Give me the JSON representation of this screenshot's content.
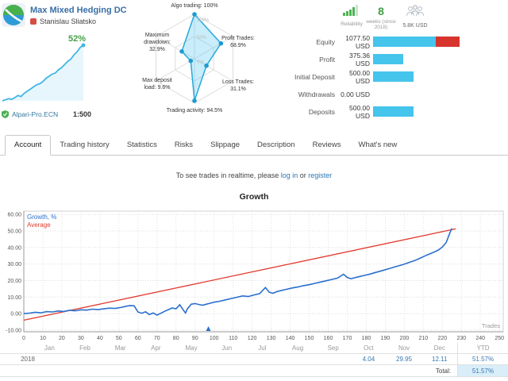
{
  "signal": {
    "title": "Max Mixed Hedging DC",
    "author": "Stanislau Sliatsko",
    "growth_badge": "52%",
    "broker": "Alpari-Pro.ECN",
    "leverage": "1:500"
  },
  "stats": {
    "reliability_label": "Reliability",
    "weeks_value": "8",
    "weeks_label": "weeks (since 2018)",
    "funds_label": "5.8K USD"
  },
  "account_summary": {
    "rows": [
      {
        "label": "Equity",
        "value": "1077.50 USD",
        "bar_blue": 79,
        "bar_red": 30
      },
      {
        "label": "Profit",
        "value": "375.36 USD",
        "bar_blue": 38,
        "bar_red": 0
      },
      {
        "label": "Initial Deposit",
        "value": "500.00 USD",
        "bar_blue": 51,
        "bar_red": 0
      },
      {
        "label": "Withdrawals",
        "value": "0.00 USD",
        "bar_blue": 0,
        "bar_red": 0
      },
      {
        "label": "Deposits",
        "value": "500.00 USD",
        "bar_blue": 51,
        "bar_red": 0
      }
    ]
  },
  "tabs": {
    "items": [
      "Account",
      "Trading history",
      "Statistics",
      "Risks",
      "Slippage",
      "Description",
      "Reviews",
      "What's new"
    ],
    "active": "Account"
  },
  "notice": {
    "text": "To see trades in realtime, please ",
    "login_link": "log in",
    "separator": " or ",
    "register_link": "register"
  },
  "chart_data": [
    {
      "id": "radar",
      "type": "radar",
      "max": 100,
      "ring_labels": [
        "100%",
        "50%",
        "0%"
      ],
      "axes": [
        {
          "lines": [
            "Algo trading: 100%"
          ],
          "value": 100
        },
        {
          "lines": [
            "Profit Trades:",
            "68.9%"
          ],
          "value": 68.9
        },
        {
          "lines": [
            "Loss Trades:",
            "31.1%"
          ],
          "value": 31.1
        },
        {
          "lines": [
            "Trading activity: 94.5%"
          ],
          "value": 94.5
        },
        {
          "lines": [
            "Max deposit",
            "load: 9.6%"
          ],
          "value": 9.6
        },
        {
          "lines": [
            "Maximum",
            "drawdown:",
            "32.9%"
          ],
          "value": 32.9
        }
      ]
    },
    {
      "id": "sparkline",
      "type": "area",
      "label": "52%",
      "ylim": [
        0,
        52
      ],
      "values": [
        0,
        1,
        2,
        1.5,
        3,
        5,
        4,
        7,
        9,
        11,
        13,
        15,
        16,
        18,
        21,
        23,
        25,
        26,
        29,
        31,
        34,
        37,
        39,
        43,
        46,
        50,
        52
      ]
    },
    {
      "id": "growth",
      "type": "line",
      "title": "Growth",
      "xlabel": "Trades",
      "xlim": [
        0,
        252
      ],
      "ylim": [
        -11,
        62
      ],
      "x_ticks": [
        0,
        10,
        20,
        30,
        40,
        50,
        60,
        70,
        80,
        90,
        100,
        110,
        120,
        130,
        140,
        150,
        160,
        170,
        180,
        190,
        200,
        210,
        220,
        230,
        240,
        250
      ],
      "y_ticks": [
        60,
        50,
        40,
        30,
        20,
        10,
        0,
        -10
      ],
      "marker_x": 97,
      "series": [
        {
          "name": "Growth, %",
          "color": "#2a6fce",
          "points": [
            [
              0,
              0
            ],
            [
              3,
              0.3
            ],
            [
              6,
              0.8
            ],
            [
              9,
              0.5
            ],
            [
              12,
              1.2
            ],
            [
              15,
              1.0
            ],
            [
              18,
              1.6
            ],
            [
              21,
              1.3
            ],
            [
              24,
              2.0
            ],
            [
              27,
              1.7
            ],
            [
              30,
              2.3
            ],
            [
              33,
              2.1
            ],
            [
              36,
              2.7
            ],
            [
              39,
              2.4
            ],
            [
              42,
              2.9
            ],
            [
              45,
              3.3
            ],
            [
              48,
              3.1
            ],
            [
              51,
              3.7
            ],
            [
              54,
              4.5
            ],
            [
              56,
              4.9
            ],
            [
              58,
              4.7
            ],
            [
              60,
              1.0
            ],
            [
              62,
              0.2
            ],
            [
              64,
              1.1
            ],
            [
              66,
              -0.6
            ],
            [
              68,
              0.4
            ],
            [
              70,
              -0.9
            ],
            [
              72,
              0.2
            ],
            [
              74,
              1.4
            ],
            [
              76,
              2.4
            ],
            [
              78,
              3.4
            ],
            [
              80,
              2.9
            ],
            [
              82,
              5.4
            ],
            [
              84,
              1.9
            ],
            [
              85,
              0.4
            ],
            [
              86,
              2.9
            ],
            [
              88,
              5.7
            ],
            [
              90,
              6.1
            ],
            [
              92,
              5.5
            ],
            [
              94,
              5.1
            ],
            [
              96,
              5.7
            ],
            [
              98,
              6.3
            ],
            [
              100,
              6.9
            ],
            [
              103,
              7.5
            ],
            [
              106,
              8.3
            ],
            [
              109,
              9.1
            ],
            [
              112,
              9.9
            ],
            [
              115,
              10.7
            ],
            [
              118,
              10.3
            ],
            [
              121,
              11.3
            ],
            [
              124,
              12.1
            ],
            [
              127,
              15.8
            ],
            [
              129,
              12.9
            ],
            [
              131,
              12.3
            ],
            [
              133,
              13.3
            ],
            [
              135,
              13.9
            ],
            [
              138,
              14.7
            ],
            [
              141,
              15.5
            ],
            [
              144,
              16.1
            ],
            [
              147,
              16.9
            ],
            [
              150,
              17.5
            ],
            [
              153,
              18.3
            ],
            [
              156,
              19.1
            ],
            [
              159,
              19.9
            ],
            [
              162,
              20.7
            ],
            [
              165,
              21.5
            ],
            [
              168,
              23.8
            ],
            [
              170,
              21.9
            ],
            [
              172,
              21.1
            ],
            [
              174,
              21.7
            ],
            [
              176,
              22.3
            ],
            [
              179,
              23.1
            ],
            [
              182,
              23.9
            ],
            [
              185,
              24.9
            ],
            [
              188,
              25.9
            ],
            [
              191,
              26.9
            ],
            [
              194,
              27.9
            ],
            [
              197,
              28.9
            ],
            [
              200,
              29.9
            ],
            [
              203,
              31.1
            ],
            [
              206,
              32.3
            ],
            [
              209,
              33.9
            ],
            [
              212,
              35.5
            ],
            [
              215,
              36.9
            ],
            [
              218,
              38.5
            ],
            [
              220,
              40.3
            ],
            [
              222,
              43.0
            ],
            [
              223,
              46.0
            ],
            [
              224,
              49.0
            ],
            [
              225,
              51.6
            ]
          ]
        },
        {
          "name": "Average",
          "color": "#e23a2e",
          "points": [
            [
              0,
              -4
            ],
            [
              227,
              51.3
            ]
          ]
        }
      ]
    }
  ],
  "monthly_table": {
    "months": [
      "Jan",
      "Feb",
      "Mar",
      "Apr",
      "May",
      "Jun",
      "Jul",
      "Aug",
      "Sep",
      "Oct",
      "Nov",
      "Dec"
    ],
    "ytd_label": "YTD",
    "rows": [
      {
        "year": "2018",
        "values": [
          "",
          "",
          "",
          "",
          "",
          "",
          "",
          "",
          "",
          "4.04",
          "29.95",
          "12.11"
        ],
        "ytd": "51.57%"
      }
    ],
    "total_label": "Total:",
    "total_value": "51.57%"
  },
  "colors": {
    "bar_blue": "#45c4ec",
    "bar_red": "#d7342e",
    "green": "#43a047",
    "radar_stroke": "#2aa9dc",
    "spark_line": "#41b6e6",
    "link_blue": "#2e77b5"
  }
}
